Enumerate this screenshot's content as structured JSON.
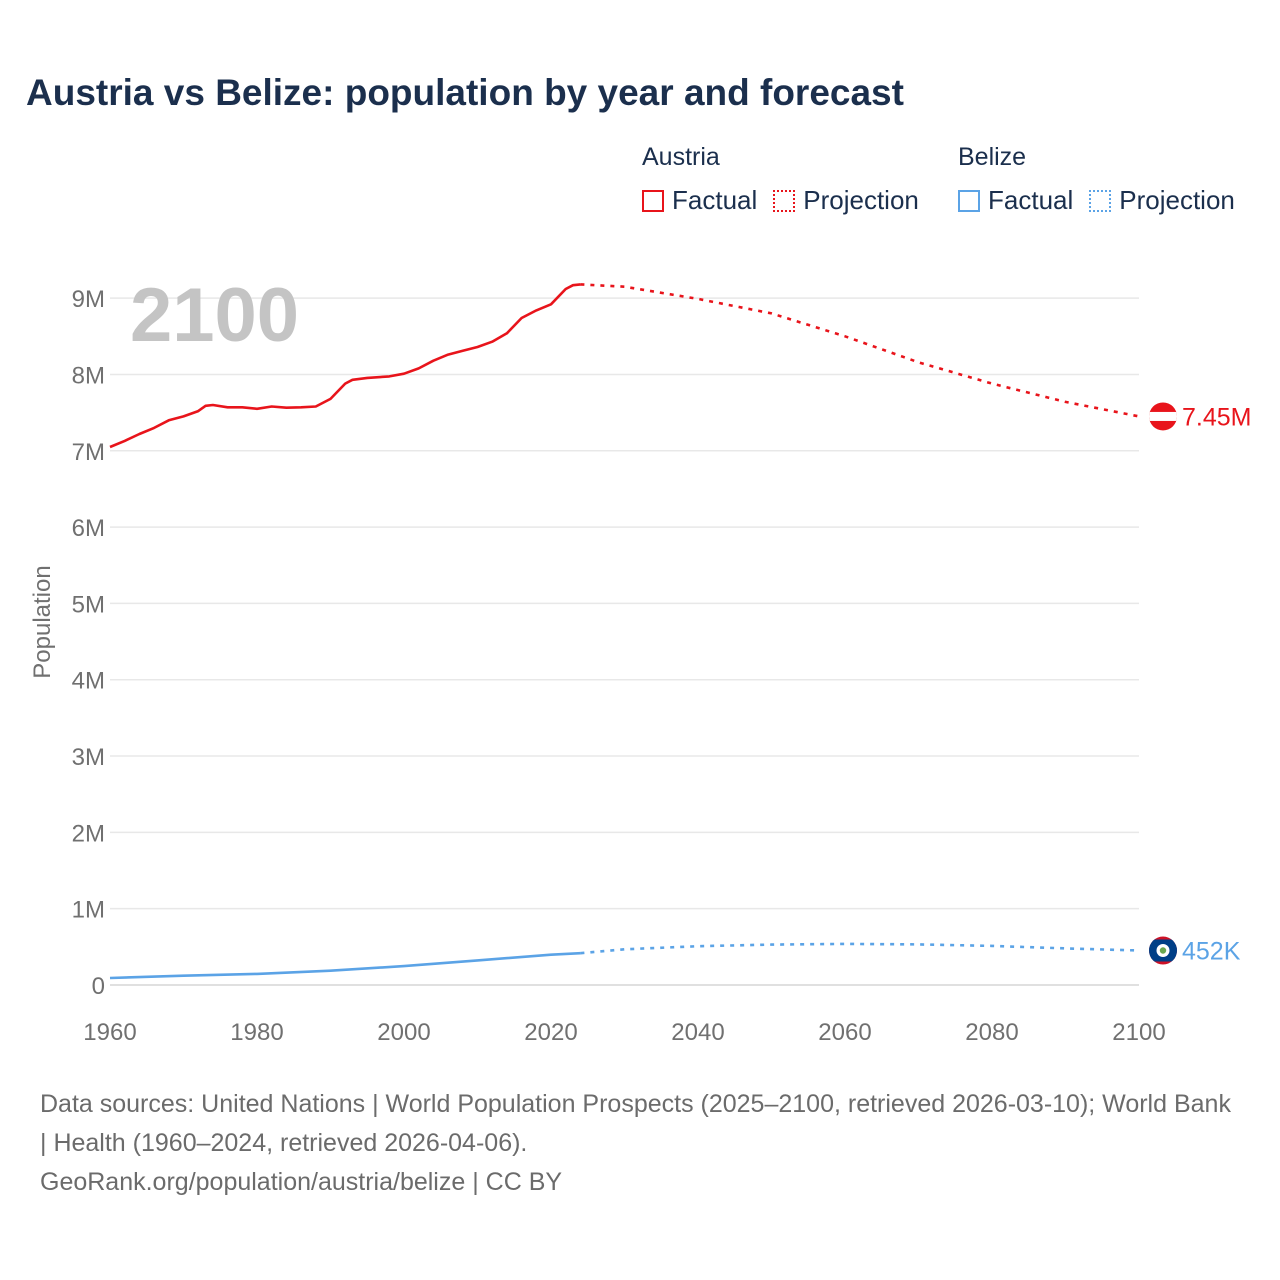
{
  "title": "Austria vs Belize: population by year and forecast",
  "legend": {
    "groups": [
      {
        "name": "Austria",
        "color": "#e8141b",
        "factual_label": "Factual",
        "projection_label": "Projection"
      },
      {
        "name": "Belize",
        "color": "#5ba3e6",
        "factual_label": "Factual",
        "projection_label": "Projection"
      }
    ]
  },
  "source": {
    "line1": "Data sources: United Nations | World Population Prospects (2025–2100, retrieved 2026-03-10); World Bank | Health (1960–2024, retrieved 2026-04-06).",
    "line2": "GeoRank.org/population/austria/belize | CC BY"
  },
  "chart_data": {
    "type": "line",
    "title": "Austria vs Belize: population by year and forecast",
    "xlabel": "",
    "ylabel": "Population",
    "year_overlay": "2100",
    "xlim": [
      1960,
      2100
    ],
    "ylim": [
      0,
      9500000
    ],
    "x_ticks": [
      1960,
      1980,
      2000,
      2020,
      2040,
      2060,
      2080,
      2100
    ],
    "y_ticks": [
      {
        "value": 0,
        "label": "0"
      },
      {
        "value": 1000000,
        "label": "1M"
      },
      {
        "value": 2000000,
        "label": "2M"
      },
      {
        "value": 3000000,
        "label": "3M"
      },
      {
        "value": 4000000,
        "label": "4M"
      },
      {
        "value": 5000000,
        "label": "5M"
      },
      {
        "value": 6000000,
        "label": "6M"
      },
      {
        "value": 7000000,
        "label": "7M"
      },
      {
        "value": 8000000,
        "label": "8M"
      },
      {
        "value": 9000000,
        "label": "9M"
      }
    ],
    "series": [
      {
        "name": "Austria",
        "color": "#e8141b",
        "end_label": "7.45M",
        "factual": {
          "x": [
            1960,
            1962,
            1964,
            1966,
            1968,
            1970,
            1972,
            1973,
            1974,
            1976,
            1978,
            1980,
            1982,
            1984,
            1986,
            1988,
            1990,
            1992,
            1993,
            1995,
            1998,
            2000,
            2002,
            2004,
            2006,
            2008,
            2010,
            2012,
            2014,
            2016,
            2018,
            2020,
            2022,
            2023,
            2024
          ],
          "y": [
            7050000,
            7130000,
            7220000,
            7300000,
            7400000,
            7450000,
            7520000,
            7590000,
            7600000,
            7570000,
            7570000,
            7550000,
            7580000,
            7565000,
            7570000,
            7580000,
            7680000,
            7880000,
            7930000,
            7955000,
            7975000,
            8010000,
            8080000,
            8180000,
            8260000,
            8310000,
            8360000,
            8430000,
            8540000,
            8740000,
            8840000,
            8920000,
            9120000,
            9170000,
            9180000
          ]
        },
        "projection": {
          "x": [
            2024,
            2030,
            2040,
            2050,
            2060,
            2070,
            2080,
            2090,
            2100
          ],
          "y": [
            9180000,
            9150000,
            8990000,
            8800000,
            8500000,
            8160000,
            7880000,
            7640000,
            7450000
          ]
        }
      },
      {
        "name": "Belize",
        "color": "#5ba3e6",
        "end_label": "452K",
        "factual": {
          "x": [
            1960,
            1970,
            1980,
            1990,
            2000,
            2010,
            2020,
            2024
          ],
          "y": [
            92000,
            122000,
            146000,
            188000,
            247000,
            322000,
            397000,
            417000
          ]
        },
        "projection": {
          "x": [
            2024,
            2030,
            2040,
            2050,
            2060,
            2070,
            2080,
            2090,
            2100
          ],
          "y": [
            417000,
            468000,
            508000,
            530000,
            538000,
            532000,
            512000,
            480000,
            452000
          ]
        }
      }
    ]
  }
}
